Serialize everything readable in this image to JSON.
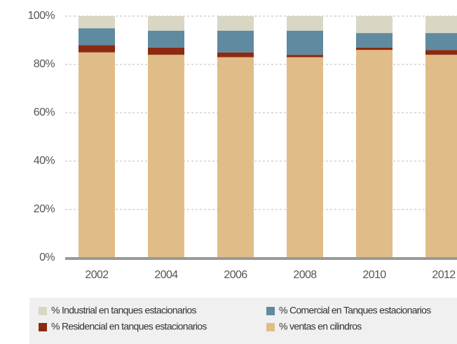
{
  "chart_data": {
    "type": "stacked_bar",
    "categories": [
      "2002",
      "2004",
      "2006",
      "2008",
      "2010",
      "2012"
    ],
    "series": [
      {
        "name": "% Industrial en tanques estacionarios",
        "color": "#d9d7c3",
        "values": [
          5,
          6,
          6,
          6,
          7,
          7
        ]
      },
      {
        "name": "% Comercial en Tanques estacionarios",
        "color": "#5f8aa0",
        "values": [
          7,
          7,
          9,
          10,
          6,
          7
        ]
      },
      {
        "name": "% Residencial en tanques estacionarios",
        "color": "#8b2a12",
        "values": [
          3,
          3,
          2,
          1,
          1,
          2
        ]
      },
      {
        "name": "% ventas en cilindros",
        "color": "#e0bd88",
        "values": [
          85,
          84,
          83,
          83,
          86,
          84
        ]
      }
    ],
    "ylim": [
      0,
      100
    ],
    "yticks": [
      {
        "value": 0,
        "label": "0%"
      },
      {
        "value": 20,
        "label": "20%"
      },
      {
        "value": 40,
        "label": "40%"
      },
      {
        "value": 60,
        "label": "60%"
      },
      {
        "value": 80,
        "label": "80%"
      },
      {
        "value": 100,
        "label": "100%"
      }
    ],
    "grid": true
  }
}
